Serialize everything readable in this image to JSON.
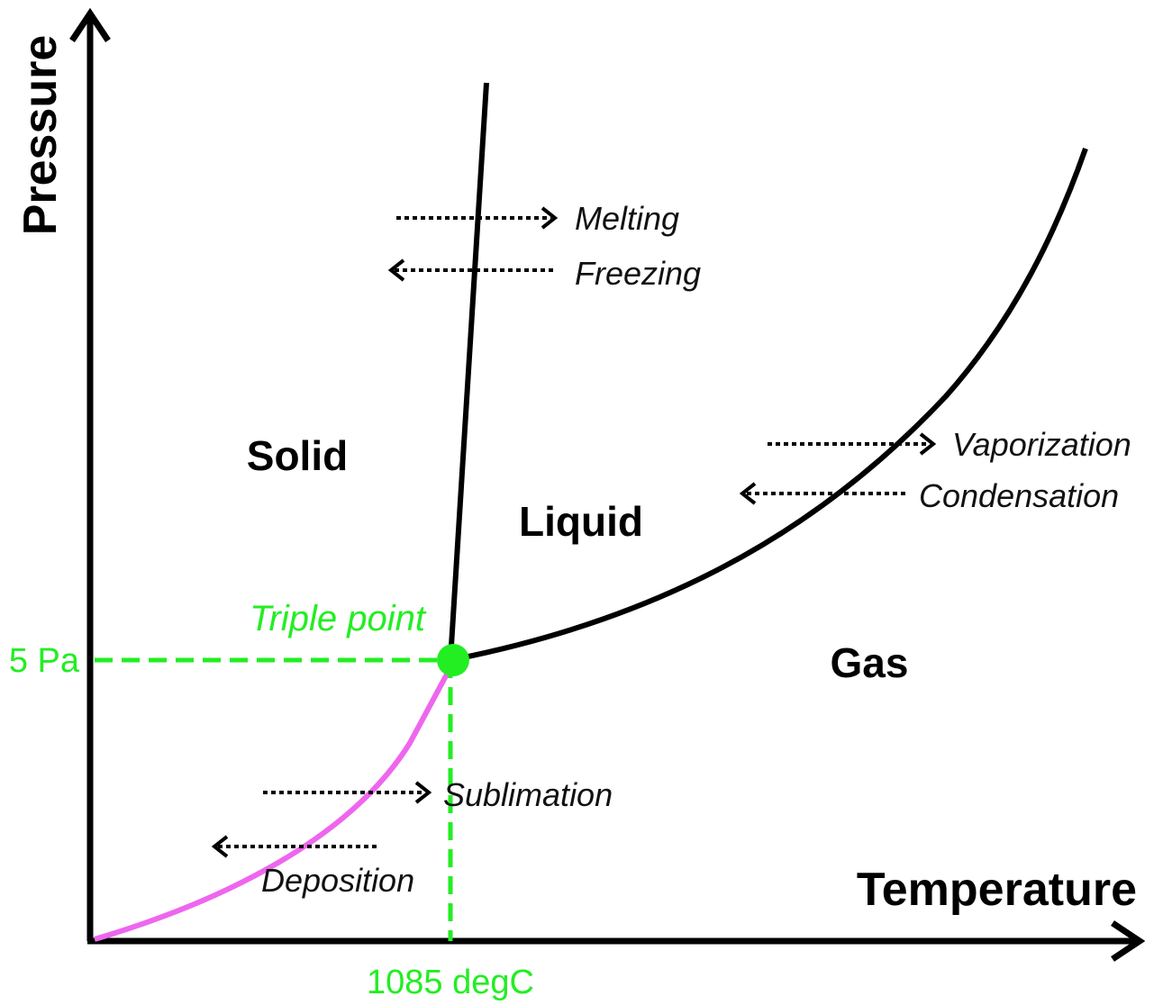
{
  "axes": {
    "y_label": "Pressure",
    "x_label": "Temperature"
  },
  "phases": {
    "solid": "Solid",
    "liquid": "Liquid",
    "gas": "Gas"
  },
  "triple_point": {
    "label": "Triple point",
    "pressure": "5 Pa",
    "temperature": "1085 degC"
  },
  "transitions": {
    "melting": "Melting",
    "freezing": "Freezing",
    "vaporization": "Vaporization",
    "condensation": "Condensation",
    "sublimation": "Sublimation",
    "deposition": "Deposition"
  }
}
